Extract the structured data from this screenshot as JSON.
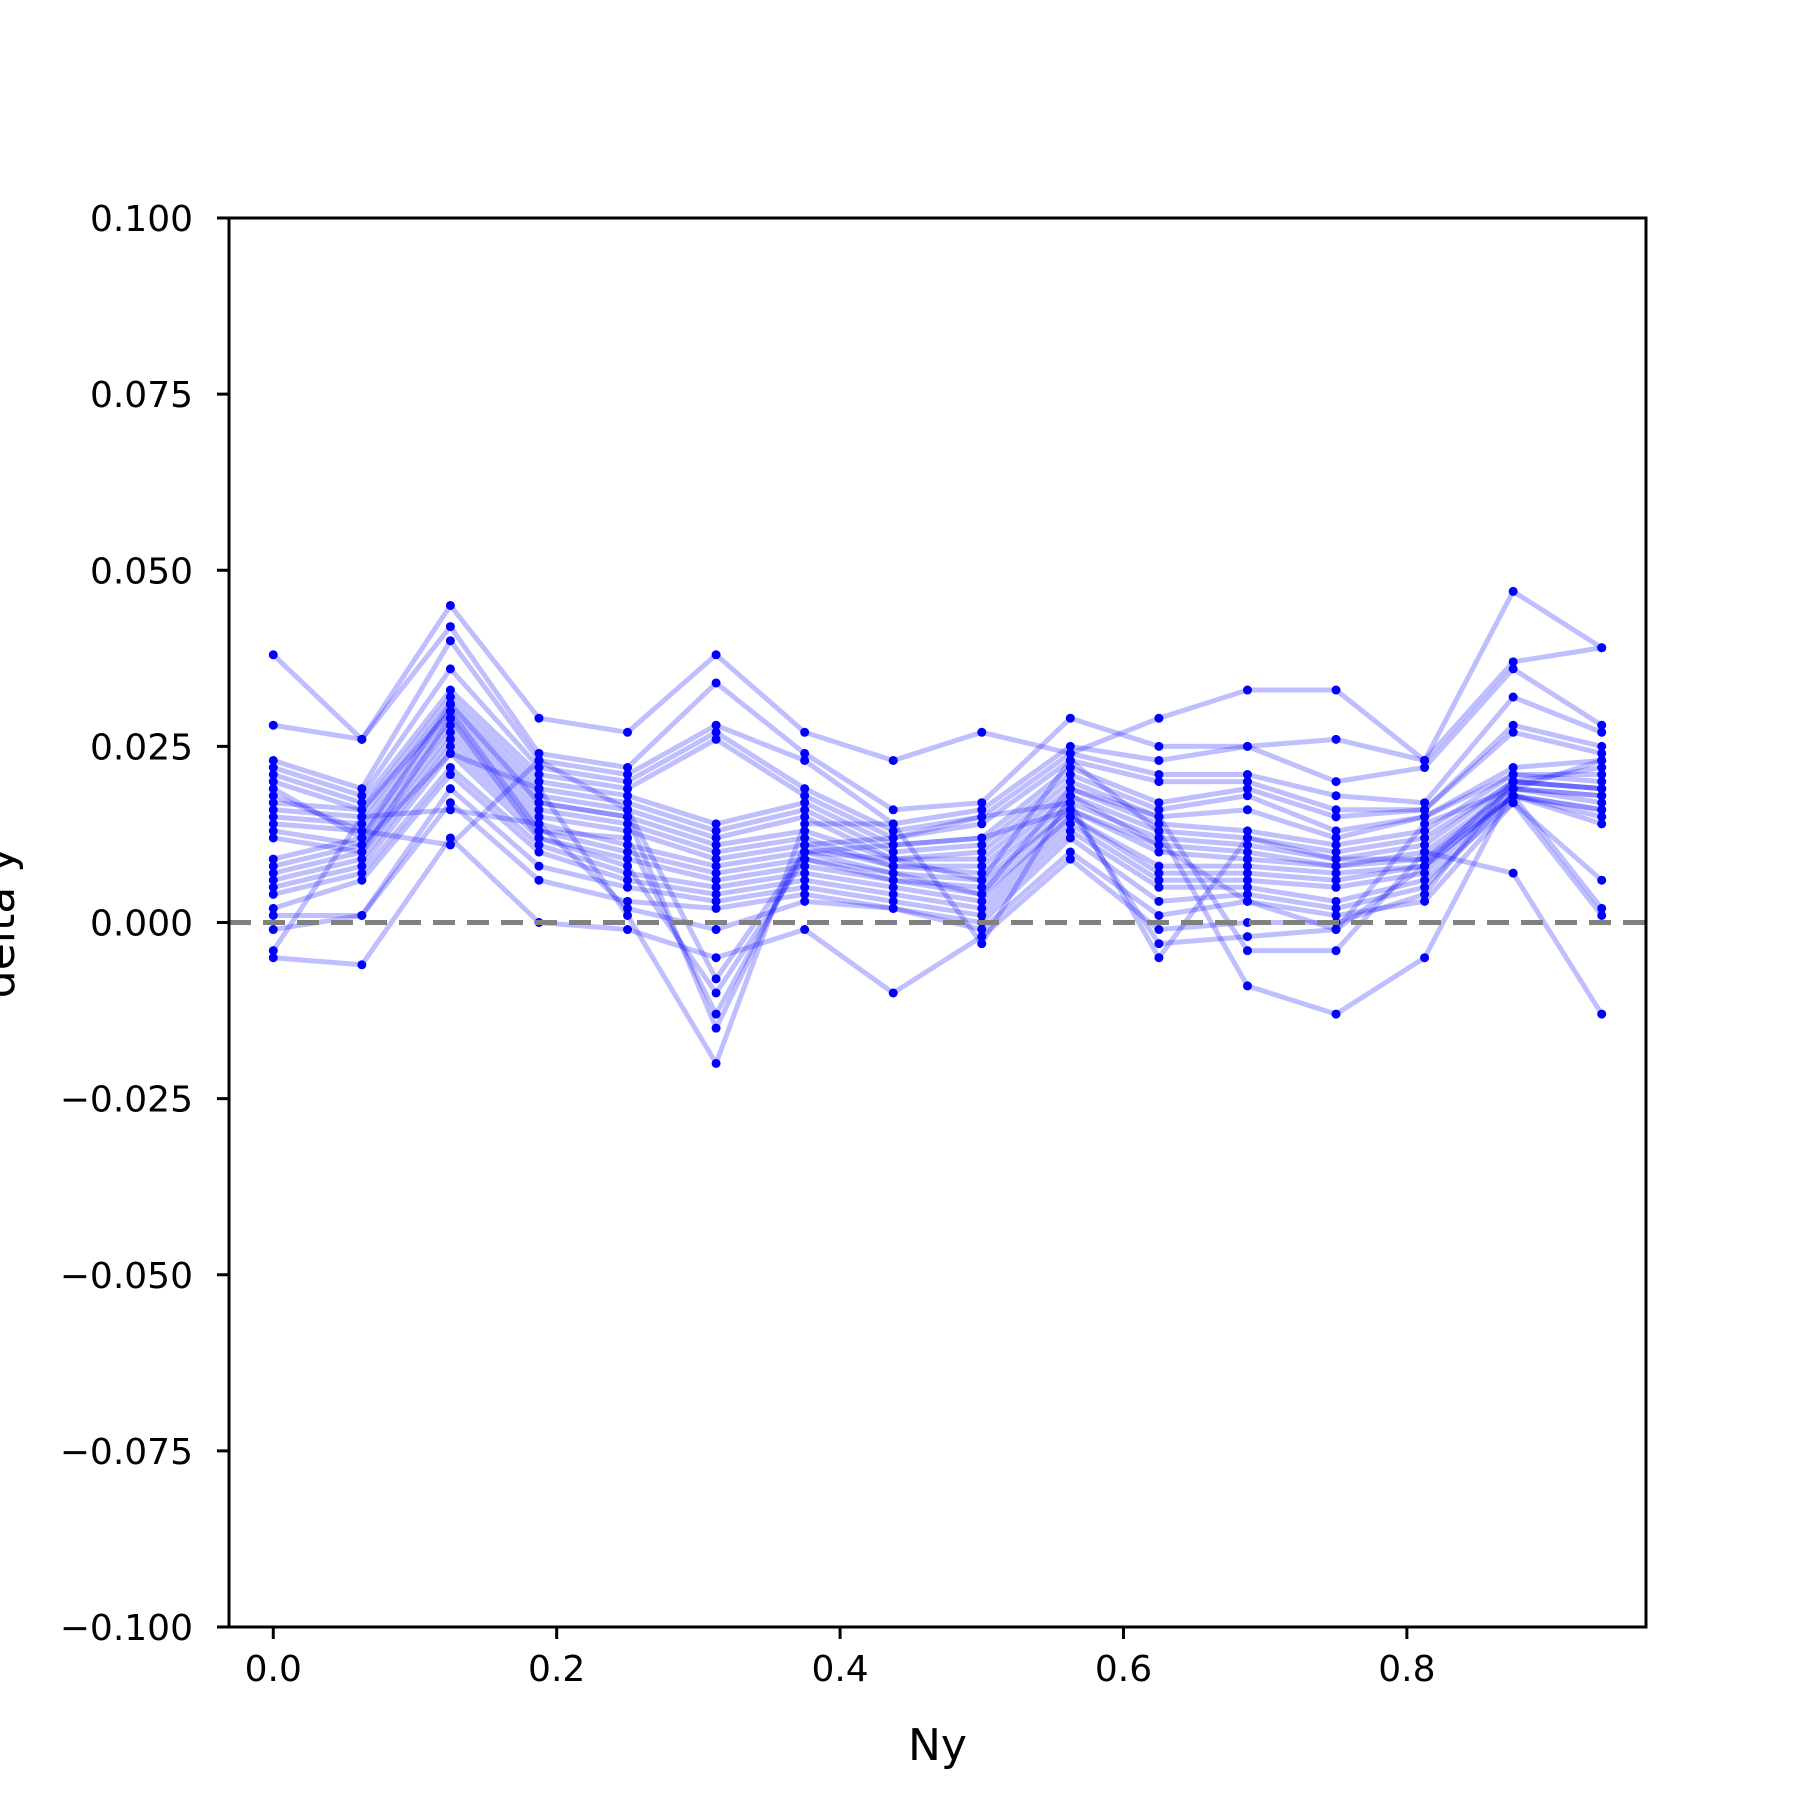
{
  "chart_data": {
    "type": "line",
    "title": "",
    "xlabel": "Ny",
    "ylabel": "delta y",
    "xlim": [
      -0.03125,
      0.96875
    ],
    "ylim": [
      -0.1,
      0.1
    ],
    "x_ticks": [
      "0.0",
      "0.2",
      "0.4",
      "0.6",
      "0.8"
    ],
    "x_tick_values": [
      0.0,
      0.2,
      0.4,
      0.6,
      0.8
    ],
    "y_ticks": [
      "−0.100",
      "−0.075",
      "−0.050",
      "−0.025",
      "0.000",
      "0.025",
      "0.050",
      "0.075",
      "0.100"
    ],
    "y_tick_values": [
      -0.1,
      -0.075,
      -0.05,
      -0.025,
      0.0,
      0.025,
      0.05,
      0.075,
      0.1
    ],
    "reference_line": {
      "y": 0.0,
      "style": "dashed",
      "color": "#808080"
    },
    "grid": false,
    "legend": "none",
    "series_color": "#0000ff",
    "line_alpha": 0.25,
    "x": [
      0.0,
      0.0625,
      0.125,
      0.1875,
      0.25,
      0.3125,
      0.375,
      0.4375,
      0.5,
      0.5625,
      0.625,
      0.6875,
      0.75,
      0.8125,
      0.875,
      0.9375
    ],
    "series": [
      {
        "values": [
          0.038,
          0.026,
          0.045,
          0.029,
          0.027,
          0.038,
          0.027,
          0.023,
          0.027,
          0.024,
          0.029,
          0.033,
          0.033,
          0.023,
          0.047,
          0.039
        ]
      },
      {
        "values": [
          0.028,
          0.026,
          0.042,
          0.024,
          0.022,
          0.034,
          0.024,
          0.016,
          0.017,
          0.029,
          0.025,
          0.025,
          0.026,
          0.023,
          0.037,
          0.039
        ]
      },
      {
        "values": [
          0.023,
          0.019,
          0.04,
          0.023,
          0.021,
          0.028,
          0.023,
          0.014,
          0.016,
          0.025,
          0.023,
          0.025,
          0.02,
          0.022,
          0.036,
          0.028
        ]
      },
      {
        "values": [
          0.022,
          0.018,
          0.036,
          0.022,
          0.02,
          0.027,
          0.019,
          0.013,
          0.015,
          0.024,
          0.021,
          0.021,
          0.018,
          0.017,
          0.032,
          0.027
        ]
      },
      {
        "values": [
          0.021,
          0.017,
          0.033,
          0.021,
          0.019,
          0.026,
          0.018,
          0.012,
          0.014,
          0.023,
          0.02,
          0.02,
          0.016,
          0.016,
          0.028,
          0.025
        ]
      },
      {
        "values": [
          0.017,
          0.016,
          0.032,
          0.02,
          0.018,
          0.014,
          0.017,
          0.011,
          0.012,
          0.022,
          0.017,
          0.019,
          0.015,
          0.016,
          0.027,
          0.024
        ]
      },
      {
        "values": [
          0.016,
          0.015,
          0.031,
          0.019,
          0.017,
          0.013,
          0.016,
          0.01,
          0.011,
          0.021,
          0.016,
          0.018,
          0.013,
          0.015,
          0.022,
          0.023
        ]
      },
      {
        "values": [
          0.015,
          0.014,
          0.03,
          0.018,
          0.016,
          0.012,
          0.015,
          0.009,
          0.01,
          0.02,
          0.015,
          0.016,
          0.012,
          0.015,
          0.021,
          0.021
        ]
      },
      {
        "values": [
          0.014,
          0.013,
          0.029,
          0.017,
          0.015,
          0.011,
          0.013,
          0.009,
          0.009,
          0.019,
          0.014,
          0.013,
          0.011,
          0.013,
          0.021,
          0.02
        ]
      },
      {
        "values": [
          0.009,
          0.012,
          0.028,
          0.016,
          0.014,
          0.01,
          0.012,
          0.008,
          0.008,
          0.018,
          0.013,
          0.012,
          0.01,
          0.012,
          0.02,
          0.019
        ]
      },
      {
        "values": [
          0.008,
          0.011,
          0.027,
          0.015,
          0.013,
          0.009,
          0.011,
          0.008,
          0.007,
          0.017,
          0.012,
          0.011,
          0.009,
          0.011,
          0.02,
          0.019
        ]
      },
      {
        "values": [
          0.007,
          0.01,
          0.026,
          0.014,
          0.011,
          0.008,
          0.01,
          0.007,
          0.006,
          0.016,
          0.011,
          0.01,
          0.008,
          0.01,
          0.019,
          0.018
        ]
      },
      {
        "values": [
          0.006,
          0.009,
          0.025,
          0.013,
          0.01,
          0.007,
          0.009,
          0.006,
          0.005,
          0.016,
          0.01,
          0.009,
          0.008,
          0.009,
          0.019,
          0.017
        ]
      },
      {
        "values": [
          0.005,
          0.008,
          0.024,
          0.012,
          0.009,
          0.006,
          0.008,
          0.006,
          0.004,
          0.015,
          0.008,
          0.008,
          0.007,
          0.008,
          0.018,
          0.016
        ]
      },
      {
        "values": [
          0.004,
          0.007,
          0.022,
          0.011,
          0.007,
          0.005,
          0.007,
          0.005,
          0.003,
          0.015,
          0.007,
          0.007,
          0.006,
          0.008,
          0.018,
          0.015
        ]
      },
      {
        "values": [
          0.002,
          0.006,
          0.021,
          0.01,
          0.006,
          0.004,
          0.006,
          0.004,
          0.002,
          0.014,
          0.006,
          0.006,
          0.005,
          0.007,
          0.018,
          0.014
        ]
      },
      {
        "values": [
          0.001,
          0.001,
          0.019,
          0.008,
          0.005,
          0.003,
          0.005,
          0.003,
          0.001,
          0.013,
          0.005,
          0.005,
          0.003,
          0.006,
          0.017,
          0.006
        ]
      },
      {
        "values": [
          -0.001,
          0.001,
          0.017,
          0.006,
          0.003,
          0.002,
          0.004,
          0.002,
          0.0,
          0.012,
          0.003,
          0.004,
          0.002,
          0.005,
          0.018,
          0.002
        ]
      },
      {
        "values": [
          -0.004,
          0.015,
          0.016,
          0.014,
          0.002,
          -0.001,
          0.003,
          0.002,
          -0.001,
          0.01,
          0.001,
          0.003,
          0.001,
          0.003,
          0.017,
          0.001
        ]
      },
      {
        "values": [
          -0.005,
          -0.006,
          0.012,
          0.0,
          -0.001,
          -0.005,
          -0.001,
          -0.01,
          -0.002,
          0.009,
          -0.001,
          0.0,
          0.0,
          0.004,
          0.02,
          0.019
        ]
      },
      {
        "values": [
          0.018,
          0.013,
          0.011,
          0.023,
          0.016,
          -0.008,
          0.01,
          0.011,
          0.012,
          0.016,
          -0.003,
          -0.002,
          -0.001,
          0.008,
          0.02,
          0.022
        ]
      },
      {
        "values": [
          0.012,
          0.01,
          0.029,
          0.012,
          0.008,
          -0.01,
          0.009,
          0.007,
          0.004,
          0.019,
          0.015,
          -0.004,
          -0.004,
          0.01,
          0.007,
          -0.013
        ]
      },
      {
        "values": [
          0.02,
          0.016,
          0.03,
          0.013,
          0.012,
          -0.013,
          0.01,
          0.009,
          0.006,
          0.023,
          0.013,
          -0.009,
          -0.013,
          -0.005,
          0.019,
          0.023
        ]
      },
      {
        "values": [
          0.019,
          0.012,
          0.031,
          0.017,
          0.015,
          -0.015,
          0.011,
          0.012,
          0.015,
          0.017,
          -0.005,
          0.012,
          0.009,
          0.009,
          0.018,
          0.016
        ]
      },
      {
        "values": [
          0.013,
          0.011,
          0.024,
          0.019,
          0.001,
          -0.02,
          0.014,
          0.014,
          -0.003,
          0.018,
          0.011,
          0.003,
          -0.001,
          0.014,
          0.019,
          0.018
        ]
      }
    ]
  }
}
